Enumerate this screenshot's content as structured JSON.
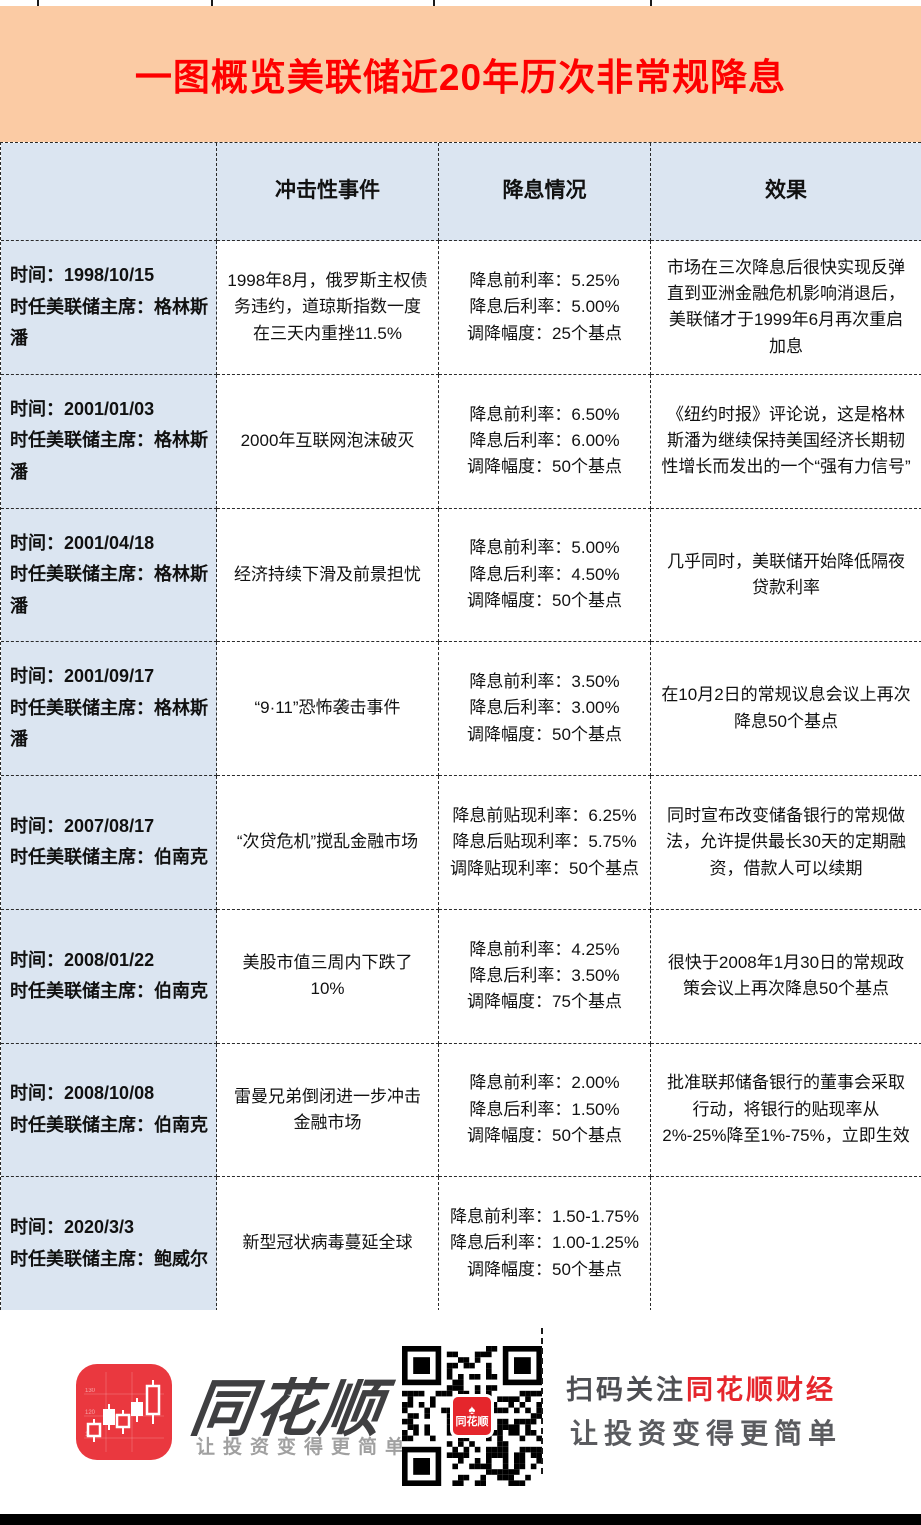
{
  "title": "一图概览美联储近20年历次非常规降息",
  "table": {
    "headers": [
      "冲击性事件",
      "降息情况",
      "效果"
    ],
    "rows": [
      {
        "time": "时间：1998/10/15",
        "chair": "时任美联储主席：格林斯潘",
        "event": "1998年8月，俄罗斯主权债务违约，道琼斯指数一度在三天内重挫11.5%",
        "rate1": "降息前利率：5.25%",
        "rate2": "降息后利率：5.00%",
        "rate3": "调降幅度：25个基点",
        "effect": "市场在三次降息后很快实现反弹直到亚洲金融危机影响消退后，美联储才于1999年6月再次重启加息"
      },
      {
        "time": "时间：2001/01/03",
        "chair": "时任美联储主席：格林斯潘",
        "event": "2000年互联网泡沫破灭",
        "rate1": "降息前利率：6.50%",
        "rate2": "降息后利率：6.00%",
        "rate3": "调降幅度：50个基点",
        "effect": "《纽约时报》评论说，这是格林斯潘为继续保持美国经济长期韧性增长而发出的一个“强有力信号”"
      },
      {
        "time": "时间：2001/04/18",
        "chair": "时任美联储主席：格林斯潘",
        "event": "经济持续下滑及前景担忧",
        "rate1": "降息前利率：5.00%",
        "rate2": "降息后利率：4.50%",
        "rate3": "调降幅度：50个基点",
        "effect": "几乎同时，美联储开始降低隔夜贷款利率"
      },
      {
        "time": "时间：2001/09/17",
        "chair": "时任美联储主席：格林斯潘",
        "event": "“9·11”恐怖袭击事件",
        "rate1": "降息前利率：3.50%",
        "rate2": "降息后利率：3.00%",
        "rate3": "调降幅度：50个基点",
        "effect": "在10月2日的常规议息会议上再次降息50个基点"
      },
      {
        "time": "时间：2007/08/17",
        "chair": "时任美联储主席：伯南克",
        "event": "“次贷危机”搅乱金融市场",
        "rate1": "降息前贴现利率：6.25%",
        "rate2": "降息后贴现利率：5.75%",
        "rate3": "调降贴现利率：50个基点",
        "effect": "同时宣布改变储备银行的常规做法，允许提供最长30天的定期融资，借款人可以续期"
      },
      {
        "time": "时间：2008/01/22",
        "chair": "时任美联储主席：伯南克",
        "event": "美股市值三周内下跌了10%",
        "rate1": "降息前利率：4.25%",
        "rate2": "降息后利率：3.50%",
        "rate3": "调降幅度：75个基点",
        "effect": "很快于2008年1月30日的常规政策会议上再次降息50个基点"
      },
      {
        "time": "时间：2008/10/08",
        "chair": "时任美联储主席：伯南克",
        "event": "雷曼兄弟倒闭进一步冲击金融市场",
        "rate1": "降息前利率：2.00%",
        "rate2": "降息后利率：1.50%",
        "rate3": "调降幅度：50个基点",
        "effect": "批准联邦储备银行的董事会采取行动，将银行的贴现率从2%-25%降至1%-75%，立即生效"
      },
      {
        "time": "时间：2020/3/3",
        "chair": "时任美联储主席：鲍威尔",
        "event": "新型冠状病毒蔓延全球",
        "rate1": "降息前利率：1.50-1.75%",
        "rate2": "降息后利率：1.00-1.25%",
        "rate3": "调降幅度：50个基点",
        "effect": ""
      }
    ]
  },
  "footer": {
    "brand": "同花顺",
    "brand_slogan": "让投资变得更简单",
    "qr_logo_fan": "♠",
    "qr_logo_text": "同花顺",
    "scan_prefix": "扫码关注",
    "scan_brand": "同花顺财经",
    "scan_slogan": "让投资变得更简单"
  },
  "colors": {
    "banner_bg": "#fbcba4",
    "title_red": "#fe0000",
    "header_blue": "#dbe5f1",
    "brand_red": "#e5262c"
  }
}
